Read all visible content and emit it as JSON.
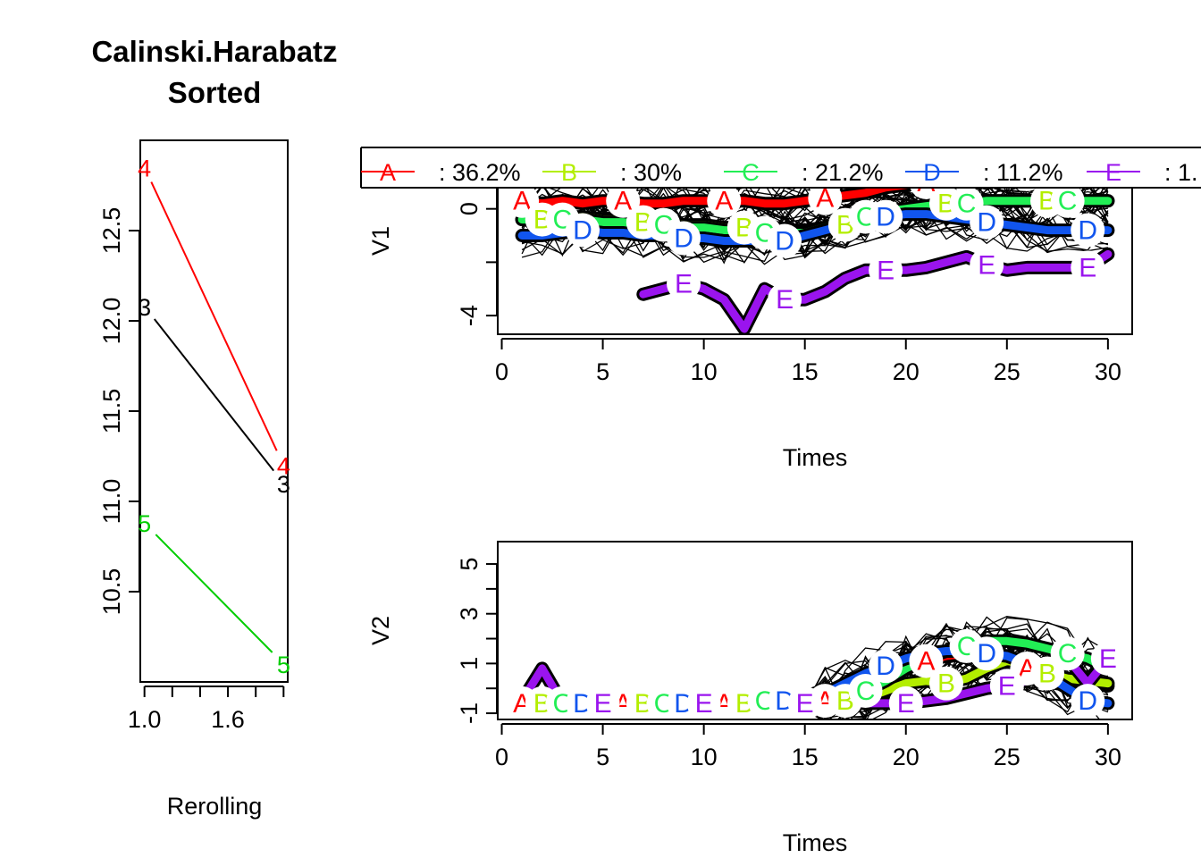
{
  "chart_data": [
    {
      "type": "line",
      "title": "Calinski.Harabatz",
      "subtitle": "Sorted",
      "xlabel": "Rerolling",
      "ylabel": "",
      "xlim": [
        0.97,
        2.03
      ],
      "ylim": [
        10.0,
        13.0
      ],
      "x_ticks": [
        1.0,
        1.2,
        1.4,
        1.6,
        1.8,
        2.0
      ],
      "x_tick_labels": [
        "1.0",
        "",
        "",
        "1.6",
        "",
        ""
      ],
      "y_ticks": [
        10.5,
        11.0,
        11.5,
        12.0,
        12.5
      ],
      "y_tick_labels": [
        "10.5",
        "11.0",
        "11.5",
        "12.0",
        "12.5"
      ],
      "x": [
        1,
        2
      ],
      "series": [
        {
          "label": "4",
          "color": "#ff0000",
          "values": [
            12.85,
            11.2
          ]
        },
        {
          "label": "3",
          "color": "#000000",
          "values": [
            12.08,
            11.1
          ]
        },
        {
          "label": "5",
          "color": "#00cd00",
          "values": [
            10.88,
            10.1
          ]
        }
      ]
    },
    {
      "type": "line",
      "xlabel": "Times",
      "ylabel": "V1",
      "xlim": [
        -0.2,
        31.2
      ],
      "ylim": [
        -4.7,
        2.3
      ],
      "x_ticks": [
        0,
        5,
        10,
        15,
        20,
        25,
        30
      ],
      "x_tick_labels": [
        "0",
        "5",
        "10",
        "15",
        "20",
        "25",
        "30"
      ],
      "y_ticks": [
        -4,
        -2,
        0,
        2
      ],
      "y_tick_labels": [
        "-4",
        "",
        "0",
        ""
      ],
      "x": [
        1,
        2,
        3,
        4,
        5,
        6,
        7,
        8,
        9,
        10,
        11,
        12,
        13,
        14,
        15,
        16,
        17,
        18,
        19,
        20,
        21,
        22,
        23,
        24,
        25,
        26,
        27,
        28,
        29,
        30
      ],
      "series": [
        {
          "name": "A",
          "color": "#ff0000",
          "label_x": [
            1,
            6,
            11,
            16,
            21,
            26
          ],
          "values": [
            0.3,
            0.2,
            0.3,
            0.2,
            0.3,
            0.3,
            0.2,
            0.2,
            0.3,
            0.3,
            0.3,
            0.3,
            0.2,
            0.2,
            0.3,
            0.4,
            0.5,
            0.6,
            0.8,
            0.9,
            1.0,
            1.1,
            1.2,
            1.2,
            1.3,
            1.3,
            1.3,
            1.3,
            1.3,
            1.4
          ]
        },
        {
          "name": "B",
          "color": "#b3ee00",
          "label_x": [
            2,
            7,
            12,
            17,
            22,
            27
          ],
          "values": [
            -0.4,
            -0.4,
            -0.3,
            -0.3,
            -0.4,
            -0.4,
            -0.5,
            -0.5,
            -0.6,
            -0.6,
            -0.7,
            -0.7,
            -0.8,
            -0.8,
            -0.8,
            -0.7,
            -0.6,
            -0.4,
            -0.2,
            0.0,
            0.1,
            0.2,
            0.2,
            0.3,
            0.3,
            0.3,
            0.3,
            0.3,
            0.3,
            0.3
          ]
        },
        {
          "name": "C",
          "color": "#22ee55",
          "label_x": [
            3,
            8,
            13,
            18,
            23,
            28
          ],
          "values": [
            -0.4,
            -0.4,
            -0.4,
            -0.4,
            -0.5,
            -0.5,
            -0.6,
            -0.6,
            -0.7,
            -0.7,
            -0.8,
            -0.8,
            -0.9,
            -0.9,
            -0.9,
            -0.7,
            -0.5,
            -0.3,
            -0.1,
            0.0,
            0.1,
            0.2,
            0.2,
            0.3,
            0.3,
            0.3,
            0.3,
            0.3,
            0.3,
            0.3
          ]
        },
        {
          "name": "D",
          "color": "#1155ee",
          "label_x": [
            4,
            9,
            14,
            19,
            24,
            29
          ],
          "values": [
            -1.0,
            -1.0,
            -0.9,
            -0.8,
            -0.9,
            -0.9,
            -1.0,
            -1.0,
            -1.1,
            -1.1,
            -1.2,
            -1.2,
            -1.2,
            -1.2,
            -1.0,
            -0.8,
            -0.6,
            -0.5,
            -0.3,
            -0.2,
            -0.2,
            -0.3,
            -0.4,
            -0.5,
            -0.6,
            -0.7,
            -0.8,
            -0.8,
            -0.8,
            -0.8
          ]
        },
        {
          "name": "E",
          "color": "#9a14ee",
          "label_x": [
            9,
            14,
            19,
            24,
            29
          ],
          "values": [
            null,
            null,
            null,
            null,
            null,
            null,
            -3.2,
            -3.0,
            -2.8,
            -3.0,
            -3.4,
            -4.5,
            -3.0,
            -3.4,
            -3.4,
            -3.1,
            -2.6,
            -2.3,
            -2.3,
            -2.3,
            -2.2,
            -2.0,
            -1.8,
            -2.1,
            -2.3,
            -2.2,
            -2.2,
            -2.2,
            -2.2,
            -1.7
          ]
        }
      ]
    },
    {
      "type": "line",
      "xlabel": "Times",
      "ylabel": "V2",
      "xlim": [
        -0.2,
        31.2
      ],
      "ylim": [
        -1.25,
        5.9
      ],
      "x_ticks": [
        0,
        5,
        10,
        15,
        20,
        25,
        30
      ],
      "x_tick_labels": [
        "0",
        "5",
        "10",
        "15",
        "20",
        "25",
        "30"
      ],
      "y_ticks": [
        -1,
        0,
        1,
        2,
        3,
        4,
        5
      ],
      "y_tick_labels": [
        "-1",
        "",
        "1",
        "",
        "3",
        "",
        "5"
      ],
      "x": [
        1,
        2,
        3,
        4,
        5,
        6,
        7,
        8,
        9,
        10,
        11,
        12,
        13,
        14,
        15,
        16,
        17,
        18,
        19,
        20,
        21,
        22,
        23,
        24,
        25,
        26,
        27,
        28,
        29,
        30
      ],
      "series": [
        {
          "name": "A",
          "color": "#ff0000",
          "label_x": [
            1,
            6,
            11,
            16,
            21,
            26
          ],
          "values": [
            -0.6,
            -0.6,
            -0.6,
            -0.6,
            -0.6,
            -0.6,
            -0.6,
            -0.6,
            -0.6,
            -0.6,
            -0.6,
            -0.6,
            -0.5,
            -0.5,
            -0.5,
            -0.5,
            -0.4,
            -0.2,
            0.3,
            0.8,
            1.1,
            1.3,
            1.4,
            1.4,
            1.3,
            0.8,
            0.5,
            0.3,
            0.2,
            0.1
          ]
        },
        {
          "name": "B",
          "color": "#b3ee00",
          "label_x": [
            2,
            7,
            12,
            17,
            22,
            27
          ],
          "values": [
            -0.6,
            -0.6,
            -0.6,
            -0.6,
            -0.6,
            -0.6,
            -0.6,
            -0.6,
            -0.6,
            -0.6,
            -0.6,
            -0.6,
            -0.6,
            -0.6,
            -0.6,
            -0.6,
            -0.5,
            -0.4,
            -0.1,
            0.2,
            0.3,
            0.2,
            0.4,
            0.8,
            1.1,
            1.0,
            0.6,
            0.4,
            0.3,
            0.2
          ]
        },
        {
          "name": "C",
          "color": "#22ee55",
          "label_x": [
            3,
            8,
            13,
            18,
            23,
            28
          ],
          "values": [
            -0.6,
            -0.6,
            -0.6,
            -0.6,
            -0.6,
            -0.6,
            -0.6,
            -0.6,
            -0.6,
            -0.6,
            -0.6,
            -0.6,
            -0.5,
            -0.5,
            -0.5,
            -0.4,
            -0.3,
            -0.1,
            0.3,
            0.8,
            1.2,
            1.5,
            1.7,
            1.9,
            1.9,
            1.8,
            1.6,
            1.4,
            1.2,
            0.8
          ]
        },
        {
          "name": "D",
          "color": "#1155ee",
          "label_x": [
            4,
            9,
            14,
            19,
            24,
            29
          ],
          "values": [
            -0.6,
            -0.6,
            -0.6,
            -0.6,
            -0.6,
            -0.6,
            -0.6,
            -0.6,
            -0.6,
            -0.6,
            -0.6,
            -0.6,
            -0.5,
            -0.5,
            -0.4,
            -0.2,
            0.2,
            0.6,
            0.9,
            1.2,
            1.4,
            1.5,
            1.5,
            1.4,
            1.3,
            1.0,
            0.5,
            0.0,
            -0.5,
            -0.6
          ]
        },
        {
          "name": "E",
          "color": "#9a14ee",
          "label_x": [
            5,
            10,
            15,
            20,
            25,
            30
          ],
          "values": [
            -0.5,
            0.8,
            -0.6,
            -0.6,
            -0.6,
            -0.6,
            -0.6,
            -0.6,
            -0.6,
            -0.6,
            -0.6,
            -0.6,
            -0.6,
            -0.6,
            -0.6,
            -0.6,
            -0.6,
            -0.6,
            -0.6,
            -0.6,
            -0.5,
            -0.4,
            -0.2,
            0.0,
            0.1,
            0.3,
            1.0,
            1.2,
            0.2,
            1.2
          ]
        }
      ]
    }
  ],
  "legend": {
    "placement": "top",
    "items": [
      {
        "key": "A",
        "text": ": 36.2%",
        "color": "#ff0000"
      },
      {
        "key": "B",
        "text": ":   30%",
        "color": "#b3ee00"
      },
      {
        "key": "C",
        "text": ": 21.2%",
        "color": "#22ee55"
      },
      {
        "key": "D",
        "text": ": 11.2%",
        "color": "#1155ee"
      },
      {
        "key": "E",
        "text": ": 1.",
        "color": "#9a14ee"
      }
    ]
  }
}
